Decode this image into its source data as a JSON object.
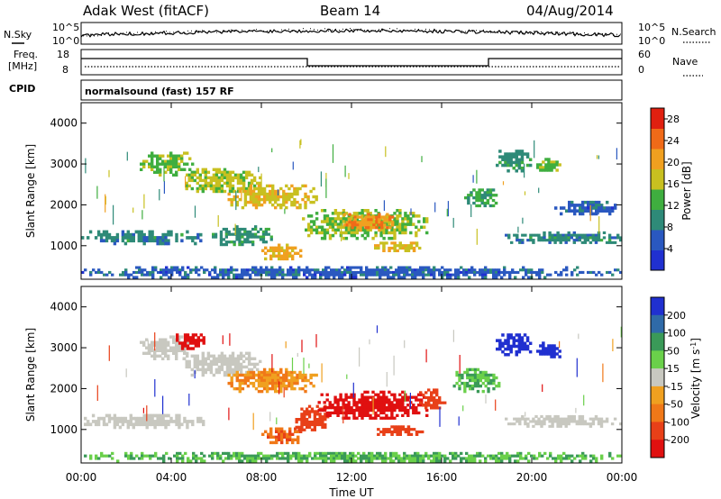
{
  "header": {
    "title": "Adak West (fitACF)",
    "beam": "Beam 14",
    "date": "04/Aug/2014"
  },
  "sky_panel": {
    "left_label": "N.Sky",
    "right_label": "N.Search",
    "tick_top": "10^5",
    "tick_bottom": "10^0"
  },
  "freq_panel": {
    "label_line1": "Freq.",
    "label_line2": "[MHz]",
    "cpid_label": "CPID",
    "left_ticks": [
      "18",
      "8"
    ],
    "right_ticks": [
      "60",
      "0"
    ],
    "right_label": "Nave"
  },
  "cpid_text": "normalsound (fast) 157 RF",
  "x_axis": {
    "label": "Time UT",
    "ticks": [
      "00:00",
      "04:00",
      "08:00",
      "12:00",
      "16:00",
      "20:00",
      "00:00"
    ]
  },
  "y_axis": {
    "label": "Slant Range [km]",
    "ticks": [
      "1000",
      "2000",
      "3000",
      "4000"
    ]
  },
  "colors": {
    "power": [
      "#2030d0",
      "#2a58c0",
      "#2e8a78",
      "#3fae3f",
      "#c8c020",
      "#f0a020",
      "#f06a18",
      "#e02010"
    ],
    "velocity": [
      "#2030d0",
      "#2f6aa8",
      "#3a9a58",
      "#6ad04a",
      "#c8c8c0",
      "#f0a020",
      "#f07818",
      "#e84018",
      "#e01010"
    ]
  },
  "chart_data": [
    {
      "type": "heatmap",
      "title": "Power",
      "ylabel": "Slant Range [km]",
      "xlabel": "",
      "xlim_hours": [
        0,
        24
      ],
      "ylim": [
        180,
        4500
      ],
      "colorbar": {
        "label": "Power [dB]",
        "ticks": [
          4,
          8,
          12,
          16,
          20,
          24,
          28
        ],
        "range": [
          0,
          30
        ]
      },
      "regions": [
        {
          "t": [
            0.0,
            5.6
          ],
          "r": [
            1020,
            1380
          ],
          "v": 9
        },
        {
          "t": [
            2.6,
            5.0
          ],
          "r": [
            2700,
            3300
          ],
          "v": 14
        },
        {
          "t": [
            4.5,
            8.0
          ],
          "r": [
            2300,
            2900
          ],
          "v": 16
        },
        {
          "t": [
            6.5,
            10.5
          ],
          "r": [
            1900,
            2500
          ],
          "v": 18
        },
        {
          "t": [
            5.8,
            8.5
          ],
          "r": [
            1000,
            1500
          ],
          "v": 10
        },
        {
          "t": [
            8.0,
            9.8
          ],
          "r": [
            650,
            1050
          ],
          "v": 20
        },
        {
          "t": [
            9.8,
            15.4
          ],
          "r": [
            1150,
            1900
          ],
          "v": 15
        },
        {
          "t": [
            11.5,
            14.0
          ],
          "r": [
            1350,
            1800
          ],
          "v": 22
        },
        {
          "t": [
            13.0,
            15.2
          ],
          "r": [
            850,
            1100
          ],
          "v": 18
        },
        {
          "t": [
            17.0,
            18.6
          ],
          "r": [
            1950,
            2400
          ],
          "v": 12
        },
        {
          "t": [
            18.4,
            20.0
          ],
          "r": [
            2800,
            3350
          ],
          "v": 10
        },
        {
          "t": [
            20.2,
            21.3
          ],
          "r": [
            2750,
            3150
          ],
          "v": 14
        },
        {
          "t": [
            18.8,
            24.0
          ],
          "r": [
            1050,
            1350
          ],
          "v": 9
        },
        {
          "t": [
            21.0,
            24.0
          ],
          "r": [
            1750,
            2100
          ],
          "v": 6
        },
        {
          "t": [
            0.0,
            24.0
          ],
          "r": [
            200,
            500
          ],
          "v": 6
        }
      ]
    },
    {
      "type": "heatmap",
      "title": "Velocity",
      "ylabel": "Slant Range [km]",
      "xlabel": "Time UT",
      "xlim_hours": [
        0,
        24
      ],
      "ylim": [
        180,
        4500
      ],
      "colorbar": {
        "label": "Velocity [m s^-1]",
        "ticks": [
          200,
          100,
          50,
          15,
          -15,
          -50,
          -100,
          -200
        ]
      },
      "regions": [
        {
          "t": [
            0.0,
            5.6
          ],
          "r": [
            1020,
            1380
          ],
          "v": 0
        },
        {
          "t": [
            2.6,
            5.0
          ],
          "r": [
            2700,
            3300
          ],
          "v": 0
        },
        {
          "t": [
            4.2,
            5.5
          ],
          "r": [
            2950,
            3350
          ],
          "v": -220
        },
        {
          "t": [
            4.5,
            8.0
          ],
          "r": [
            2300,
            2900
          ],
          "v": 0
        },
        {
          "t": [
            6.5,
            10.5
          ],
          "r": [
            1900,
            2500
          ],
          "v": -30
        },
        {
          "t": [
            8.0,
            9.8
          ],
          "r": [
            650,
            1050
          ],
          "v": -70
        },
        {
          "t": [
            9.5,
            11.0
          ],
          "r": [
            900,
            1600
          ],
          "v": -120
        },
        {
          "t": [
            10.5,
            15.4
          ],
          "r": [
            1250,
            1950
          ],
          "v": -220
        },
        {
          "t": [
            15.0,
            16.2
          ],
          "r": [
            1500,
            2000
          ],
          "v": -90
        },
        {
          "t": [
            13.0,
            15.2
          ],
          "r": [
            850,
            1100
          ],
          "v": -120
        },
        {
          "t": [
            16.5,
            18.6
          ],
          "r": [
            1900,
            2500
          ],
          "v": 30
        },
        {
          "t": [
            18.4,
            20.0
          ],
          "r": [
            2800,
            3350
          ],
          "v": 220
        },
        {
          "t": [
            20.2,
            21.3
          ],
          "r": [
            2750,
            3150
          ],
          "v": 220
        },
        {
          "t": [
            18.8,
            24.0
          ],
          "r": [
            1050,
            1350
          ],
          "v": 0
        },
        {
          "t": [
            0.0,
            24.0
          ],
          "r": [
            200,
            450
          ],
          "v": 30
        }
      ]
    }
  ]
}
